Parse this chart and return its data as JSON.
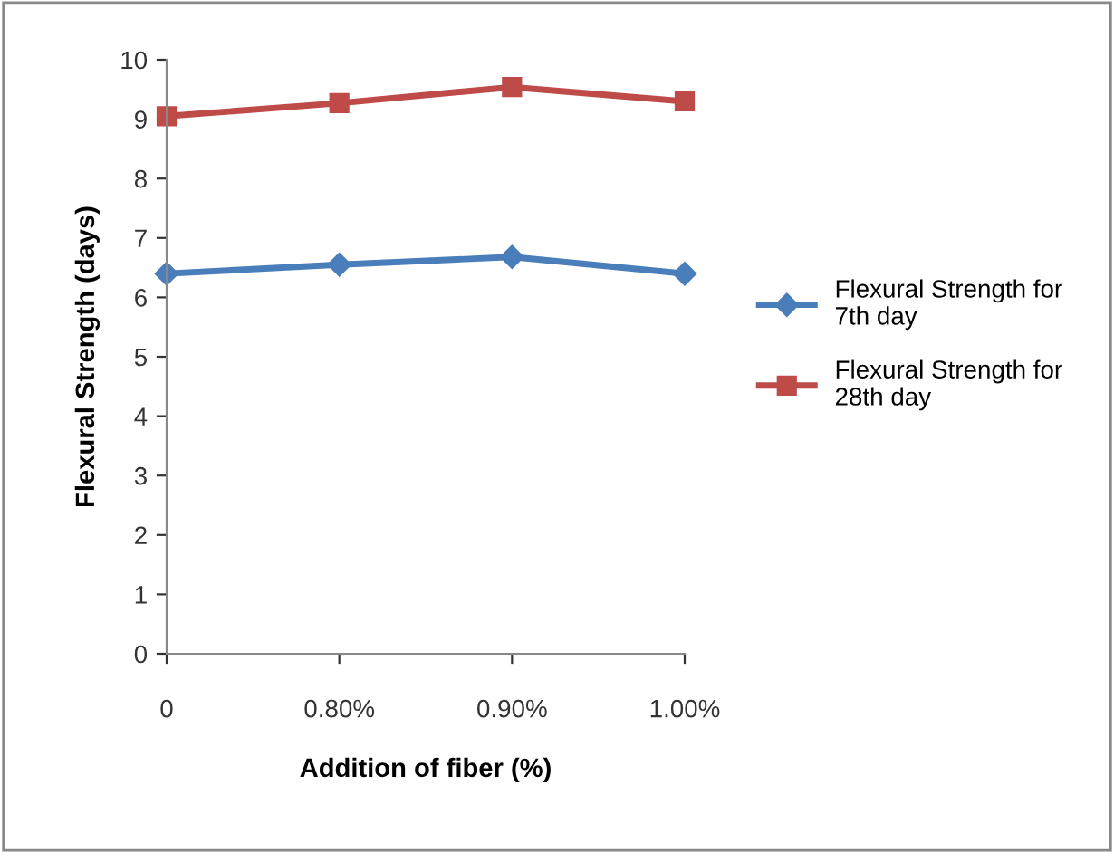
{
  "chart_data": {
    "type": "line",
    "xlabel": "Addition of fiber (%)",
    "ylabel": "Flexural Strength (days)",
    "categories": [
      "0",
      "0.80%",
      "0.90%",
      "1.00%"
    ],
    "series": [
      {
        "name": "Flexural Strength for 7th day",
        "color": "#4a7ebb",
        "values": [
          6.4,
          6.55,
          6.68,
          6.4
        ],
        "marker": "diamond"
      },
      {
        "name": "Flexural Strength for 28th day",
        "color": "#be4b48",
        "values": [
          9.05,
          9.27,
          9.54,
          9.3
        ],
        "marker": "square"
      }
    ],
    "ylim": [
      0,
      10
    ],
    "yticks": [
      0,
      1,
      2,
      3,
      4,
      5,
      6,
      7,
      8,
      9,
      10
    ],
    "grid": false,
    "legend": "right",
    "line_style": "solid"
  }
}
